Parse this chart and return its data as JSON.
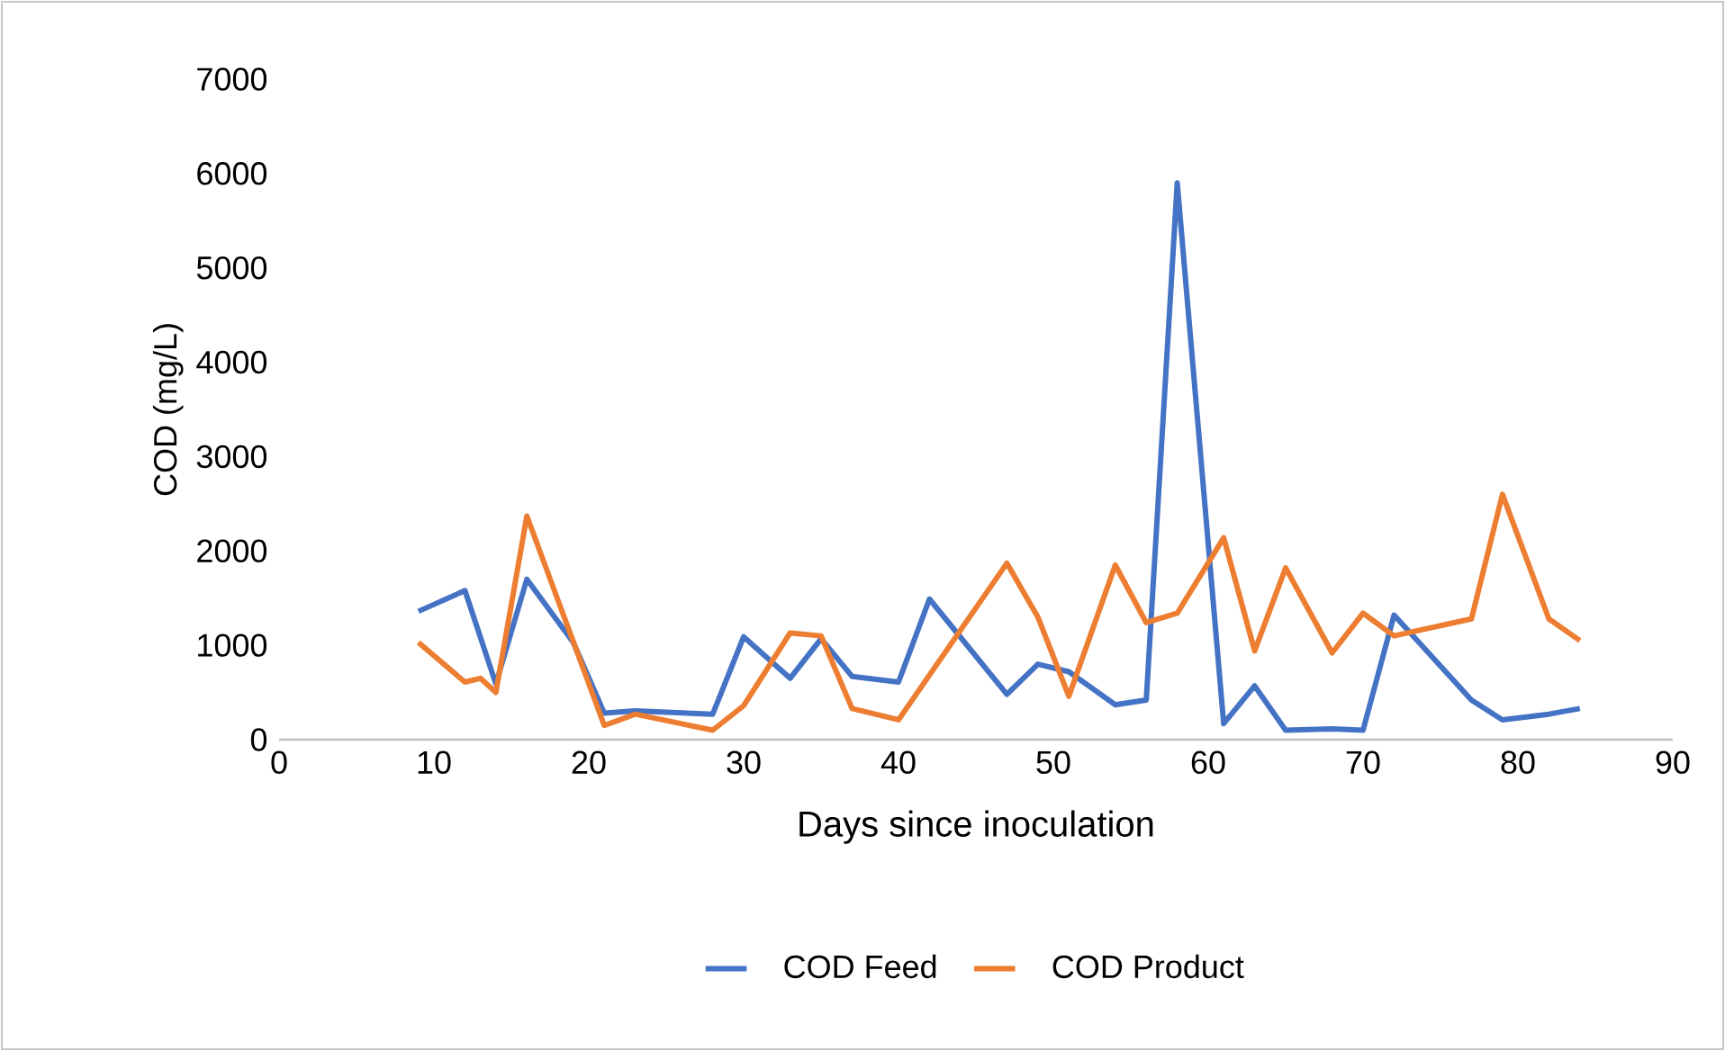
{
  "chart_data": {
    "type": "line",
    "xlabel": "Days since inoculation",
    "ylabel": "COD (mg/L)",
    "xlim": [
      0,
      90
    ],
    "xticks": [
      0,
      10,
      20,
      30,
      40,
      50,
      60,
      70,
      80,
      90
    ],
    "ylim": [
      0,
      7000
    ],
    "yticks": [
      0,
      1000,
      2000,
      3000,
      4000,
      5000,
      6000,
      7000
    ],
    "legend": "bottom",
    "marker": "none",
    "line_style": "solid",
    "series": [
      {
        "name": "COD  Feed",
        "color": "#4472c4",
        "x": [
          9,
          12,
          14,
          16,
          19,
          21,
          23,
          28,
          30,
          33,
          35,
          37,
          40,
          42,
          47,
          49,
          51,
          54,
          56,
          58,
          61,
          63,
          65,
          68,
          70,
          72,
          77,
          79,
          82,
          84
        ],
        "values": [
          1360,
          1580,
          590,
          1700,
          1030,
          280,
          305,
          270,
          1090,
          650,
          1070,
          670,
          610,
          1490,
          480,
          800,
          720,
          370,
          420,
          5900,
          170,
          570,
          100,
          115,
          100,
          1320,
          420,
          210,
          270,
          330
        ]
      },
      {
        "name": "COD Product",
        "color": "#ed7d31",
        "x": [
          9,
          12,
          13,
          14,
          16,
          21,
          23,
          28,
          30,
          33,
          35,
          37,
          40,
          47,
          49,
          51,
          54,
          56,
          58,
          61,
          63,
          65,
          68,
          70,
          72,
          77,
          79,
          82,
          84
        ],
        "values": [
          1030,
          610,
          650,
          500,
          2370,
          150,
          270,
          100,
          360,
          1130,
          1100,
          330,
          210,
          1870,
          1300,
          460,
          1850,
          1240,
          1340,
          2140,
          940,
          1820,
          920,
          1340,
          1100,
          1280,
          2600,
          1280,
          1050
        ]
      }
    ]
  }
}
